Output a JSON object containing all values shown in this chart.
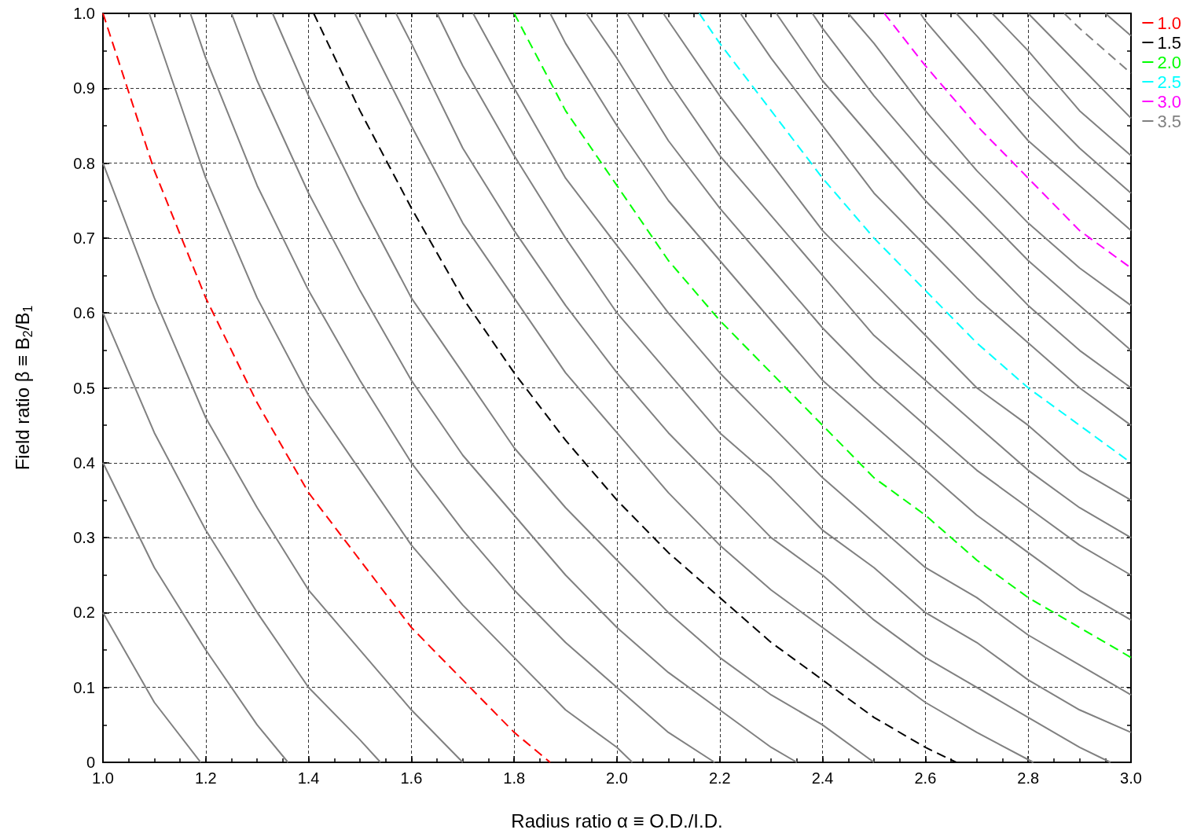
{
  "chart_data": {
    "type": "line",
    "xlabel": "Radius ratio α ≡ O.D./I.D.",
    "ylabel": "Field ratio β ≡ B$_{2}$/B$_{1}$",
    "xlim": [
      1.0,
      3.0
    ],
    "ylim": [
      0,
      1.0
    ],
    "xticks": [
      {
        "value": 1.0,
        "label": "1.0"
      },
      {
        "value": 1.05,
        "label": null
      },
      {
        "value": 1.1,
        "label": null
      },
      {
        "value": 1.15,
        "label": null
      },
      {
        "value": 1.2,
        "label": "1.2"
      },
      {
        "value": 1.25,
        "label": null
      },
      {
        "value": 1.3,
        "label": null
      },
      {
        "value": 1.35,
        "label": null
      },
      {
        "value": 1.4,
        "label": "1.4"
      },
      {
        "value": 1.45,
        "label": null
      },
      {
        "value": 1.5,
        "label": null
      },
      {
        "value": 1.55,
        "label": null
      },
      {
        "value": 1.6,
        "label": "1.6"
      },
      {
        "value": 1.65,
        "label": null
      },
      {
        "value": 1.7,
        "label": null
      },
      {
        "value": 1.75,
        "label": null
      },
      {
        "value": 1.8,
        "label": "1.8"
      },
      {
        "value": 1.85,
        "label": null
      },
      {
        "value": 1.9,
        "label": null
      },
      {
        "value": 1.95,
        "label": null
      },
      {
        "value": 2.0,
        "label": "2.0"
      },
      {
        "value": 2.05,
        "label": null
      },
      {
        "value": 2.1,
        "label": null
      },
      {
        "value": 2.15,
        "label": null
      },
      {
        "value": 2.2,
        "label": "2.2"
      },
      {
        "value": 2.25,
        "label": null
      },
      {
        "value": 2.3,
        "label": null
      },
      {
        "value": 2.35,
        "label": null
      },
      {
        "value": 2.4,
        "label": "2.4"
      },
      {
        "value": 2.45,
        "label": null
      },
      {
        "value": 2.5,
        "label": null
      },
      {
        "value": 2.55,
        "label": null
      },
      {
        "value": 2.6,
        "label": "2.6"
      },
      {
        "value": 2.65,
        "label": null
      },
      {
        "value": 2.7,
        "label": null
      },
      {
        "value": 2.75,
        "label": null
      },
      {
        "value": 2.8,
        "label": "2.8"
      },
      {
        "value": 2.85,
        "label": null
      },
      {
        "value": 2.9,
        "label": null
      },
      {
        "value": 2.95,
        "label": null
      },
      {
        "value": 3.0,
        "label": "3.0"
      }
    ],
    "yticks": [
      0,
      {
        "value": 0.05,
        "label": null
      },
      0.1,
      {
        "value": 0.15,
        "label": null
      },
      0.2,
      {
        "value": 0.25,
        "label": null
      },
      0.3,
      {
        "value": 0.35,
        "label": null
      },
      0.4,
      {
        "value": 0.45,
        "label": null
      },
      0.5,
      {
        "value": 0.55,
        "label": null
      },
      0.6,
      {
        "value": 0.65,
        "label": null
      },
      0.7,
      {
        "value": 0.75,
        "label": null
      },
      0.8,
      {
        "value": 0.85,
        "label": null
      },
      0.9,
      {
        "value": 0.95,
        "label": null
      },
      {
        "value": 1.0,
        "label": "1.0"
      }
    ],
    "grid": true,
    "legend": "top right",
    "marker": "none",
    "series": [
      {
        "color": "#808080",
        "x": [
          1.0,
          1.1,
          1.19
        ],
        "values": [
          0.2,
          0.08,
          0
        ]
      },
      {
        "color": "#808080",
        "x": [
          1.0,
          1.1,
          1.2,
          1.3,
          1.36
        ],
        "values": [
          0.4,
          0.26,
          0.15,
          0.05,
          0
        ]
      },
      {
        "color": "#808080",
        "x": [
          1.0,
          1.1,
          1.2,
          1.3,
          1.4,
          1.5,
          1.54
        ],
        "values": [
          0.6,
          0.44,
          0.31,
          0.2,
          0.1,
          0.03,
          0
        ]
      },
      {
        "color": "#808080",
        "x": [
          1.0,
          1.1,
          1.2,
          1.3,
          1.4,
          1.5,
          1.6,
          1.7
        ],
        "values": [
          0.8,
          0.62,
          0.46,
          0.34,
          0.23,
          0.15,
          0.07,
          0
        ]
      },
      {
        "name": "1.0",
        "color": "#ff0000",
        "line_style": "dashed",
        "x": [
          1.0,
          1.1,
          1.2,
          1.3,
          1.4,
          1.5,
          1.6,
          1.7,
          1.8,
          1.87
        ],
        "values": [
          1.0,
          0.79,
          0.62,
          0.48,
          0.36,
          0.27,
          0.18,
          0.11,
          0.04,
          0
        ]
      },
      {
        "color": "#808080",
        "x": [
          1.09,
          1.2,
          1.3,
          1.4,
          1.5,
          1.6,
          1.7,
          1.8,
          1.9,
          2.0,
          2.03
        ],
        "values": [
          1.0,
          0.78,
          0.62,
          0.49,
          0.39,
          0.29,
          0.21,
          0.14,
          0.07,
          0.02,
          0
        ]
      },
      {
        "color": "#808080",
        "x": [
          1.17,
          1.2,
          1.3,
          1.4,
          1.5,
          1.6,
          1.7,
          1.8,
          1.9,
          2.0,
          2.1,
          2.19
        ],
        "values": [
          1.0,
          0.94,
          0.77,
          0.63,
          0.51,
          0.4,
          0.31,
          0.23,
          0.16,
          0.1,
          0.04,
          0
        ]
      },
      {
        "color": "#808080",
        "x": [
          1.25,
          1.3,
          1.4,
          1.5,
          1.6,
          1.7,
          1.8,
          1.9,
          2.0,
          2.1,
          2.2,
          2.3,
          2.35
        ],
        "values": [
          1.0,
          0.91,
          0.76,
          0.63,
          0.51,
          0.41,
          0.33,
          0.25,
          0.18,
          0.12,
          0.07,
          0.02,
          0
        ]
      },
      {
        "color": "#808080",
        "x": [
          1.33,
          1.4,
          1.5,
          1.6,
          1.7,
          1.8,
          1.9,
          2.0,
          2.1,
          2.2,
          2.3,
          2.4,
          2.5
        ],
        "values": [
          1.0,
          0.89,
          0.75,
          0.62,
          0.52,
          0.42,
          0.34,
          0.27,
          0.2,
          0.14,
          0.09,
          0.05,
          0
        ]
      },
      {
        "name": "1.5",
        "color": "#000000",
        "line_style": "dashed",
        "x": [
          1.41,
          1.5,
          1.6,
          1.7,
          1.8,
          1.9,
          2.0,
          2.1,
          2.2,
          2.3,
          2.4,
          2.5,
          2.6,
          2.66
        ],
        "values": [
          1.0,
          0.87,
          0.74,
          0.62,
          0.52,
          0.43,
          0.35,
          0.28,
          0.22,
          0.16,
          0.11,
          0.06,
          0.02,
          0
        ]
      },
      {
        "color": "#808080",
        "x": [
          1.49,
          1.6,
          1.7,
          1.8,
          1.9,
          2.0,
          2.1,
          2.2,
          2.3,
          2.4,
          2.5,
          2.6,
          2.7,
          2.81
        ],
        "values": [
          1.0,
          0.85,
          0.72,
          0.62,
          0.52,
          0.44,
          0.36,
          0.29,
          0.23,
          0.18,
          0.13,
          0.08,
          0.04,
          0
        ]
      },
      {
        "color": "#808080",
        "x": [
          1.57,
          1.6,
          1.7,
          1.8,
          1.9,
          2.0,
          2.1,
          2.2,
          2.3,
          2.4,
          2.5,
          2.6,
          2.7,
          2.8,
          2.9,
          2.96
        ],
        "values": [
          1.0,
          0.96,
          0.82,
          0.71,
          0.61,
          0.52,
          0.44,
          0.37,
          0.3,
          0.25,
          0.19,
          0.14,
          0.1,
          0.06,
          0.02,
          0
        ]
      },
      {
        "color": "#808080",
        "x": [
          1.65,
          1.7,
          1.8,
          1.9,
          2.0,
          2.1,
          2.2,
          2.3,
          2.4,
          2.5,
          2.6,
          2.7,
          2.8,
          2.9,
          3.0
        ],
        "values": [
          1.0,
          0.93,
          0.81,
          0.7,
          0.6,
          0.52,
          0.44,
          0.38,
          0.31,
          0.26,
          0.2,
          0.16,
          0.11,
          0.07,
          0.04
        ]
      },
      {
        "color": "#808080",
        "x": [
          1.72,
          1.8,
          1.9,
          2.0,
          2.1,
          2.2,
          2.3,
          2.4,
          2.5,
          2.6,
          2.7,
          2.8,
          2.9,
          3.0
        ],
        "values": [
          1.0,
          0.9,
          0.78,
          0.69,
          0.6,
          0.52,
          0.45,
          0.38,
          0.32,
          0.26,
          0.22,
          0.17,
          0.13,
          0.09
        ]
      },
      {
        "name": "2.0",
        "color": "#00ff00",
        "line_style": "dashed",
        "x": [
          1.8,
          1.9,
          2.0,
          2.1,
          2.2,
          2.3,
          2.4,
          2.5,
          2.6,
          2.7,
          2.8,
          2.9,
          3.0
        ],
        "values": [
          1.0,
          0.87,
          0.77,
          0.67,
          0.59,
          0.52,
          0.45,
          0.38,
          0.33,
          0.27,
          0.22,
          0.18,
          0.14
        ]
      },
      {
        "color": "#808080",
        "x": [
          1.87,
          1.9,
          2.0,
          2.1,
          2.2,
          2.3,
          2.4,
          2.5,
          2.6,
          2.7,
          2.8,
          2.9,
          3.0
        ],
        "values": [
          1.0,
          0.96,
          0.85,
          0.75,
          0.67,
          0.59,
          0.51,
          0.45,
          0.39,
          0.33,
          0.28,
          0.23,
          0.19
        ]
      },
      {
        "color": "#808080",
        "x": [
          1.94,
          2.0,
          2.1,
          2.2,
          2.3,
          2.4,
          2.5,
          2.6,
          2.7,
          2.8,
          2.9,
          3.0
        ],
        "values": [
          1.0,
          0.94,
          0.83,
          0.74,
          0.66,
          0.58,
          0.51,
          0.45,
          0.39,
          0.34,
          0.29,
          0.25
        ]
      },
      {
        "color": "#808080",
        "x": [
          2.02,
          2.1,
          2.2,
          2.3,
          2.4,
          2.5,
          2.6,
          2.7,
          2.8,
          2.9,
          3.0
        ],
        "values": [
          1.0,
          0.91,
          0.81,
          0.73,
          0.65,
          0.57,
          0.51,
          0.45,
          0.39,
          0.34,
          0.3
        ]
      },
      {
        "color": "#808080",
        "x": [
          2.09,
          2.2,
          2.3,
          2.4,
          2.5,
          2.6,
          2.7,
          2.8,
          2.9,
          3.0
        ],
        "values": [
          1.0,
          0.89,
          0.8,
          0.71,
          0.64,
          0.57,
          0.5,
          0.45,
          0.39,
          0.35
        ]
      },
      {
        "name": "2.5",
        "color": "#00ffff",
        "line_style": "dashed",
        "x": [
          2.16,
          2.2,
          2.3,
          2.4,
          2.5,
          2.6,
          2.7,
          2.8,
          2.9,
          3.0
        ],
        "values": [
          1.0,
          0.96,
          0.87,
          0.78,
          0.7,
          0.63,
          0.56,
          0.5,
          0.45,
          0.4
        ]
      },
      {
        "color": "#808080",
        "x": [
          2.24,
          2.3,
          2.4,
          2.5,
          2.6,
          2.7,
          2.8,
          2.9,
          3.0
        ],
        "values": [
          1.0,
          0.94,
          0.85,
          0.76,
          0.69,
          0.62,
          0.56,
          0.5,
          0.45
        ]
      },
      {
        "color": "#808080",
        "x": [
          2.31,
          2.4,
          2.5,
          2.6,
          2.7,
          2.8,
          2.9,
          3.0
        ],
        "values": [
          1.0,
          0.91,
          0.83,
          0.75,
          0.68,
          0.61,
          0.55,
          0.5
        ]
      },
      {
        "color": "#808080",
        "x": [
          2.38,
          2.4,
          2.5,
          2.6,
          2.7,
          2.8,
          2.9,
          3.0
        ],
        "values": [
          1.0,
          0.98,
          0.89,
          0.81,
          0.74,
          0.67,
          0.61,
          0.55
        ]
      },
      {
        "color": "#808080",
        "x": [
          2.45,
          2.5,
          2.6,
          2.7,
          2.8,
          2.9,
          3.0
        ],
        "values": [
          1.0,
          0.96,
          0.87,
          0.79,
          0.72,
          0.66,
          0.61
        ]
      },
      {
        "name": "3.0",
        "color": "#ff00ff",
        "line_style": "dashed",
        "x": [
          2.52,
          2.6,
          2.7,
          2.8,
          2.9,
          3.0
        ],
        "values": [
          1.0,
          0.93,
          0.85,
          0.78,
          0.71,
          0.66
        ]
      },
      {
        "color": "#808080",
        "x": [
          2.59,
          2.6,
          2.7,
          2.8,
          2.9,
          3.0
        ],
        "values": [
          1.0,
          0.99,
          0.91,
          0.83,
          0.77,
          0.71
        ]
      },
      {
        "color": "#808080",
        "x": [
          2.66,
          2.7,
          2.8,
          2.9,
          3.0
        ],
        "values": [
          1.0,
          0.97,
          0.89,
          0.82,
          0.76
        ]
      },
      {
        "color": "#808080",
        "x": [
          2.73,
          2.8,
          2.9,
          3.0
        ],
        "values": [
          1.0,
          0.95,
          0.87,
          0.81
        ]
      },
      {
        "color": "#808080",
        "x": [
          2.8,
          2.9,
          3.0
        ],
        "values": [
          1.0,
          0.93,
          0.86
        ]
      },
      {
        "name": "3.5",
        "color": "#808080",
        "line_style": "dashed",
        "x": [
          2.87,
          2.9,
          3.0
        ],
        "values": [
          1.0,
          0.98,
          0.92
        ]
      },
      {
        "color": "#808080",
        "x": [
          2.95,
          3.0
        ],
        "values": [
          1.0,
          0.97
        ]
      }
    ]
  }
}
